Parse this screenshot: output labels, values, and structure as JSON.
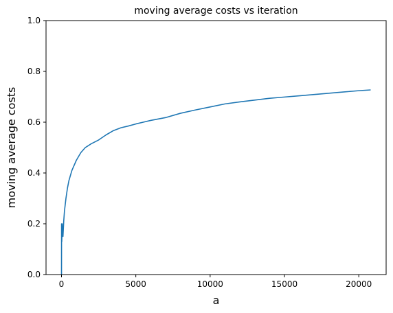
{
  "chart_data": {
    "type": "line",
    "title": "moving average costs vs iteration",
    "xlabel": "a",
    "ylabel": "moving average costs",
    "xlim": [
      -1040,
      21840
    ],
    "ylim": [
      0.0,
      1.0
    ],
    "xticks": [
      0,
      5000,
      10000,
      15000,
      20000
    ],
    "yticks": [
      0.0,
      0.2,
      0.4,
      0.6,
      0.8,
      1.0
    ],
    "grid": false,
    "series": [
      {
        "color": "#1f77b4",
        "x": [
          0,
          1,
          5,
          10,
          20,
          30,
          50,
          70,
          100,
          150,
          200,
          300,
          400,
          500,
          700,
          1000,
          1300,
          1600,
          2000,
          2500,
          3000,
          3500,
          4000,
          4500,
          5000,
          5500,
          6000,
          7000,
          8000,
          9000,
          10000,
          11000,
          12000,
          13000,
          14000,
          15000,
          16000,
          17000,
          18000,
          19000,
          20000,
          20800
        ],
        "y": [
          0.0,
          0.0,
          0.2,
          0.17,
          0.13,
          0.16,
          0.2,
          0.18,
          0.15,
          0.21,
          0.25,
          0.3,
          0.34,
          0.37,
          0.41,
          0.45,
          0.48,
          0.5,
          0.515,
          0.53,
          0.55,
          0.567,
          0.578,
          0.585,
          0.593,
          0.6,
          0.607,
          0.618,
          0.635,
          0.648,
          0.66,
          0.672,
          0.68,
          0.687,
          0.694,
          0.699,
          0.704,
          0.709,
          0.714,
          0.719,
          0.724,
          0.727
        ]
      }
    ]
  }
}
